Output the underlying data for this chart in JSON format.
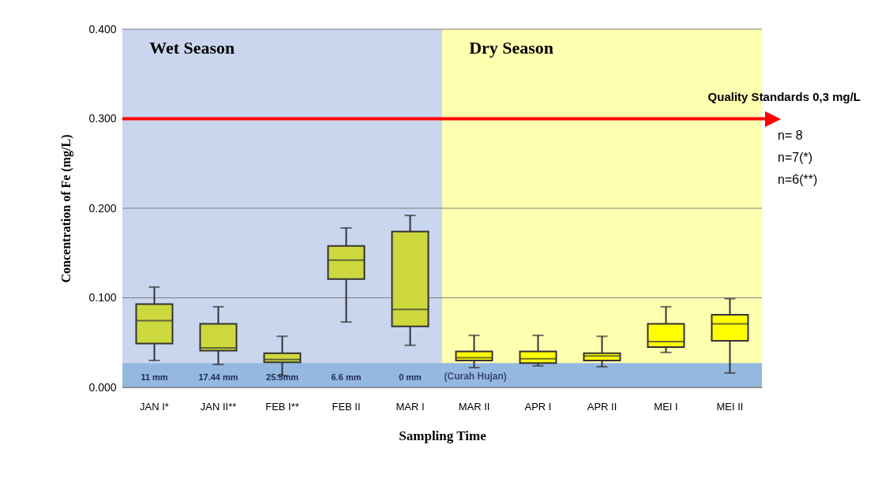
{
  "chart_data": {
    "type": "box",
    "xlabel": "Sampling Time",
    "ylabel": "Concentration of Fe (mg/L)",
    "categories": [
      "JAN I*",
      "JAN II**",
      "FEB I**",
      "FEB II",
      "MAR I",
      "MAR II",
      "APR I",
      "APR II",
      "MEI I",
      "MEI II"
    ],
    "boxes": [
      {
        "low": 0.03,
        "q1": 0.049,
        "median": 0.0745,
        "q3": 0.093,
        "high": 0.112
      },
      {
        "low": 0.0255,
        "q1": 0.041,
        "median": 0.044,
        "q3": 0.071,
        "high": 0.09
      },
      {
        "low": 0.013,
        "q1": 0.028,
        "median": 0.031,
        "q3": 0.038,
        "high": 0.057
      },
      {
        "low": 0.073,
        "q1": 0.121,
        "median": 0.142,
        "q3": 0.158,
        "high": 0.178
      },
      {
        "low": 0.047,
        "q1": 0.068,
        "median": 0.087,
        "q3": 0.174,
        "high": 0.192
      },
      {
        "low": 0.022,
        "q1": 0.03,
        "median": 0.033,
        "q3": 0.04,
        "high": 0.058
      },
      {
        "low": 0.024,
        "q1": 0.027,
        "median": 0.032,
        "q3": 0.04,
        "high": 0.058
      },
      {
        "low": 0.023,
        "q1": 0.03,
        "median": 0.035,
        "q3": 0.038,
        "high": 0.057
      },
      {
        "low": 0.039,
        "q1": 0.045,
        "median": 0.051,
        "q3": 0.071,
        "high": 0.09
      },
      {
        "low": 0.016,
        "q1": 0.052,
        "median": 0.071,
        "q3": 0.081,
        "high": 0.099
      }
    ],
    "colors": [
      "#cdd83f",
      "#cdd83f",
      "#cdd83f",
      "#cdd83f",
      "#cdd83f",
      "#ffff00",
      "#ffff00",
      "#ffff00",
      "#ffff00",
      "#ffff00"
    ],
    "ylim": [
      0,
      0.4
    ],
    "yticks": [
      {
        "value": 0,
        "label": "0.000"
      },
      {
        "value": 0.1,
        "label": "0.100"
      },
      {
        "value": 0.2,
        "label": "0.200"
      },
      {
        "value": 0.3,
        "label": "0.300"
      },
      {
        "value": 0.4,
        "label": "0.400"
      }
    ],
    "grid": "y",
    "bands": [
      {
        "axis": "x",
        "from": "JAN I*",
        "to": "MAR I",
        "label": "Wet Season",
        "color": "#cad6ee"
      },
      {
        "axis": "x",
        "from": "MAR II",
        "to": "MEI II",
        "label": "Dry Season",
        "color": "#ffffb0"
      },
      {
        "axis": "y",
        "from": 0,
        "to": 0.027,
        "color": "#94b8e0"
      }
    ],
    "ref_lines": [
      {
        "axis": "y",
        "value": 0.3,
        "label": "Quality Standards  0,3 mg/L",
        "color": "#ff0000"
      }
    ],
    "annotations": [
      "11 mm",
      "17.44 mm",
      "25.5mm",
      "6.6 mm",
      "0 mm",
      "(Curah Hujan)",
      "n= 8",
      "n=7(*)",
      "n=6(**)"
    ]
  }
}
